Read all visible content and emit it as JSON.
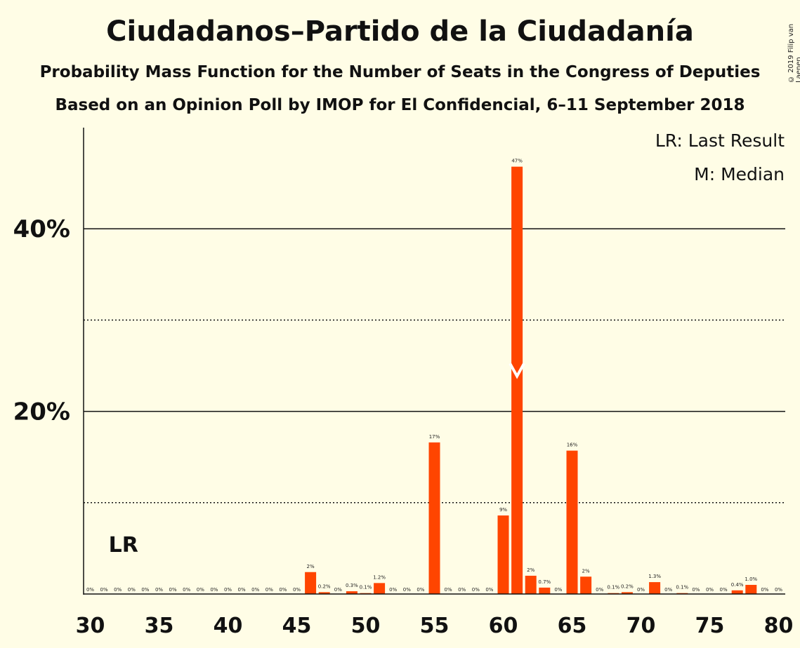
{
  "title": "Ciudadanos–Partido de la Ciudadanía",
  "subtitle1": "Probability Mass Function for the Number of Seats in the Congress of Deputies",
  "subtitle2": "Based on an Opinion Poll by IMOP for El Confidencial, 6–11 September 2018",
  "copyright": "© 2019 Filip van Laenen",
  "legend": {
    "lr": "LR: Last Result",
    "m": "M: Median"
  },
  "colors": {
    "bar": "#ff4500",
    "background": "#fffde6",
    "median_marker": "#ffffff"
  },
  "chart_data": {
    "type": "bar",
    "x": [
      30,
      31,
      32,
      33,
      34,
      35,
      36,
      37,
      38,
      39,
      40,
      41,
      42,
      43,
      44,
      45,
      46,
      47,
      48,
      49,
      50,
      51,
      52,
      53,
      54,
      55,
      56,
      57,
      58,
      59,
      60,
      61,
      62,
      63,
      64,
      65,
      66,
      67,
      68,
      69,
      70,
      71,
      72,
      73,
      74,
      75,
      76,
      77,
      78,
      79,
      80
    ],
    "values": [
      0,
      0,
      0,
      0,
      0,
      0,
      0,
      0,
      0,
      0,
      0,
      0,
      0,
      0,
      0,
      0,
      2.4,
      0.2,
      0,
      0.3,
      0.1,
      1.2,
      0,
      0,
      0,
      16.6,
      0,
      0,
      0,
      0,
      8.6,
      46.8,
      2.0,
      0.7,
      0,
      15.7,
      1.9,
      0,
      0.1,
      0.2,
      0,
      1.3,
      0,
      0.1,
      0,
      0,
      0,
      0.4,
      1.0,
      0,
      0
    ],
    "labels": [
      "0%",
      "0%",
      "0%",
      "0%",
      "0%",
      "0%",
      "0%",
      "0%",
      "0%",
      "0%",
      "0%",
      "0%",
      "0%",
      "0%",
      "0%",
      "0%",
      "2%",
      "0.2%",
      "0%",
      "0.3%",
      "0.1%",
      "1.2%",
      "0%",
      "0%",
      "0%",
      "17%",
      "0%",
      "0%",
      "0%",
      "0%",
      "9%",
      "47%",
      "2%",
      "0.7%",
      "0%",
      "16%",
      "2%",
      "0%",
      "0.1%",
      "0.2%",
      "0%",
      "1.3%",
      "0%",
      "0.1%",
      "0%",
      "0%",
      "0%",
      "0.4%",
      "1.0%",
      "0%",
      "0%"
    ],
    "x_ticks": [
      30,
      35,
      40,
      45,
      50,
      55,
      60,
      65,
      70,
      75,
      80
    ],
    "y_ticks": [
      20,
      40
    ],
    "y_tick_labels": [
      "20%",
      "40%"
    ],
    "y_minor_ticks": [
      10,
      30
    ],
    "ylim": [
      0,
      51
    ],
    "last_result": 32,
    "last_result_label": "LR",
    "median": 61
  }
}
